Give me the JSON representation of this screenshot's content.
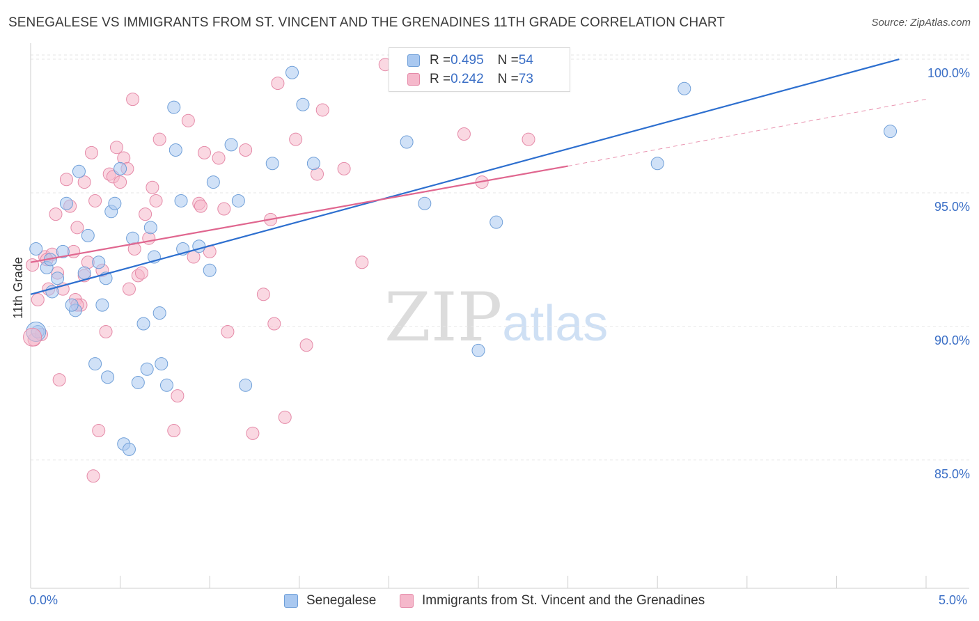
{
  "title": "SENEGALESE VS IMMIGRANTS FROM ST. VINCENT AND THE GRENADINES 11TH GRADE CORRELATION CHART",
  "source": "Source: ZipAtlas.com",
  "watermark": {
    "zip": "ZIP",
    "atlas": "atlas"
  },
  "legend": {
    "rows": [
      {
        "r_label": "R = ",
        "r_value": "0.495",
        "n_label": "N = ",
        "n_value": "54",
        "color": "#a9c8f0"
      },
      {
        "r_label": "R = ",
        "r_value": "0.242",
        "n_label": "N = ",
        "n_value": "73",
        "color": "#f5b8cb"
      }
    ]
  },
  "colors": {
    "blue_fill": "#a9c8f0",
    "blue_stroke": "#6f9fd8",
    "blue_line": "#2d6fcf",
    "pink_fill": "#f5b8cb",
    "pink_stroke": "#e58aa8",
    "pink_line": "#e0668f",
    "axis_text": "#3b6fc6"
  },
  "chart_data": {
    "type": "scatter",
    "title": "SENEGALESE VS IMMIGRANTS FROM ST. VINCENT AND THE GRENADINES 11TH GRADE CORRELATION CHART",
    "xlabel": "",
    "ylabel": "11th Grade",
    "xlim": [
      0,
      5
    ],
    "ylim": [
      80.2,
      100.6
    ],
    "x_tick_labels": [
      "0.0%",
      "5.0%"
    ],
    "y_ticks": [
      85,
      90,
      95,
      100
    ],
    "y_tick_labels": [
      "85.0%",
      "90.0%",
      "95.0%",
      "100.0%"
    ],
    "grid": true,
    "legend_position": "top-center",
    "series": [
      {
        "name": "Senegalese",
        "color": "#a9c8f0",
        "points": [
          [
            0.03,
            92.9
          ],
          [
            0.04,
            89.8
          ],
          [
            0.09,
            92.2
          ],
          [
            0.11,
            92.5
          ],
          [
            0.12,
            91.3
          ],
          [
            0.15,
            91.8
          ],
          [
            0.18,
            92.8
          ],
          [
            0.2,
            94.6
          ],
          [
            0.25,
            90.6
          ],
          [
            0.27,
            95.8
          ],
          [
            0.3,
            92.0
          ],
          [
            0.32,
            93.4
          ],
          [
            0.36,
            88.6
          ],
          [
            0.4,
            90.8
          ],
          [
            0.42,
            91.8
          ],
          [
            0.43,
            88.1
          ],
          [
            0.45,
            94.3
          ],
          [
            0.47,
            94.6
          ],
          [
            0.5,
            95.9
          ],
          [
            0.52,
            85.6
          ],
          [
            0.55,
            85.4
          ],
          [
            0.57,
            93.3
          ],
          [
            0.6,
            87.9
          ],
          [
            0.63,
            90.1
          ],
          [
            0.65,
            88.4
          ],
          [
            0.67,
            93.7
          ],
          [
            0.69,
            92.6
          ],
          [
            0.72,
            90.5
          ],
          [
            0.73,
            88.6
          ],
          [
            0.76,
            87.8
          ],
          [
            0.8,
            98.2
          ],
          [
            0.81,
            96.6
          ],
          [
            0.84,
            94.7
          ],
          [
            0.94,
            93.0
          ],
          [
            1.0,
            92.1
          ],
          [
            1.02,
            95.4
          ],
          [
            1.12,
            96.8
          ],
          [
            1.16,
            94.7
          ],
          [
            1.2,
            87.8
          ],
          [
            1.35,
            96.1
          ],
          [
            1.46,
            99.5
          ],
          [
            1.52,
            98.3
          ],
          [
            1.58,
            96.1
          ],
          [
            2.1,
            96.9
          ],
          [
            2.2,
            94.6
          ],
          [
            2.5,
            89.1
          ],
          [
            2.6,
            93.9
          ],
          [
            2.69,
            99.9
          ],
          [
            3.5,
            96.1
          ],
          [
            3.65,
            98.9
          ],
          [
            4.8,
            97.3
          ],
          [
            0.38,
            92.4
          ],
          [
            0.85,
            92.9
          ],
          [
            0.23,
            90.8
          ]
        ],
        "trend": {
          "x": [
            0.0,
            4.85
          ],
          "y": [
            91.2,
            100.0
          ]
        }
      },
      {
        "name": "Immigrants from St. Vincent and the Grenadines",
        "color": "#f5b8cb",
        "points": [
          [
            0.01,
            92.3
          ],
          [
            0.02,
            89.5
          ],
          [
            0.04,
            91.0
          ],
          [
            0.06,
            89.7
          ],
          [
            0.08,
            92.6
          ],
          [
            0.1,
            91.4
          ],
          [
            0.12,
            92.7
          ],
          [
            0.14,
            94.2
          ],
          [
            0.15,
            92.0
          ],
          [
            0.16,
            88.0
          ],
          [
            0.18,
            91.4
          ],
          [
            0.2,
            95.5
          ],
          [
            0.22,
            94.5
          ],
          [
            0.24,
            92.8
          ],
          [
            0.25,
            91.0
          ],
          [
            0.26,
            93.7
          ],
          [
            0.28,
            90.8
          ],
          [
            0.3,
            95.4
          ],
          [
            0.3,
            91.9
          ],
          [
            0.32,
            92.4
          ],
          [
            0.34,
            96.5
          ],
          [
            0.35,
            84.4
          ],
          [
            0.36,
            94.7
          ],
          [
            0.38,
            86.1
          ],
          [
            0.4,
            92.1
          ],
          [
            0.42,
            89.8
          ],
          [
            0.44,
            95.7
          ],
          [
            0.46,
            95.6
          ],
          [
            0.48,
            96.7
          ],
          [
            0.5,
            95.4
          ],
          [
            0.52,
            96.3
          ],
          [
            0.54,
            95.9
          ],
          [
            0.55,
            91.4
          ],
          [
            0.57,
            98.5
          ],
          [
            0.58,
            92.9
          ],
          [
            0.6,
            91.9
          ],
          [
            0.62,
            92.0
          ],
          [
            0.64,
            94.2
          ],
          [
            0.66,
            93.3
          ],
          [
            0.68,
            95.2
          ],
          [
            0.7,
            94.7
          ],
          [
            0.72,
            97.0
          ],
          [
            0.8,
            86.1
          ],
          [
            0.82,
            87.4
          ],
          [
            0.88,
            97.7
          ],
          [
            0.91,
            92.6
          ],
          [
            0.94,
            94.6
          ],
          [
            0.95,
            94.5
          ],
          [
            0.97,
            96.5
          ],
          [
            1.0,
            92.8
          ],
          [
            1.05,
            96.3
          ],
          [
            1.08,
            94.4
          ],
          [
            1.1,
            89.8
          ],
          [
            1.2,
            96.6
          ],
          [
            1.24,
            86.0
          ],
          [
            1.3,
            91.2
          ],
          [
            1.34,
            94.0
          ],
          [
            1.36,
            90.1
          ],
          [
            1.38,
            99.1
          ],
          [
            1.42,
            86.6
          ],
          [
            1.48,
            97.0
          ],
          [
            1.54,
            89.3
          ],
          [
            1.6,
            95.7
          ],
          [
            1.63,
            98.1
          ],
          [
            1.75,
            95.9
          ],
          [
            1.85,
            92.4
          ],
          [
            1.98,
            99.8
          ],
          [
            2.17,
            99.3
          ],
          [
            2.42,
            97.2
          ],
          [
            2.52,
            95.4
          ],
          [
            2.78,
            97.0
          ],
          [
            0.09,
            92.5
          ],
          [
            0.26,
            90.8
          ]
        ],
        "trend": {
          "x": [
            0.0,
            3.0
          ],
          "y": [
            92.4,
            96.0
          ]
        },
        "trend_extension": {
          "x": [
            3.0,
            5.0
          ],
          "y": [
            96.0,
            98.5
          ]
        }
      }
    ]
  },
  "bottom_legend": [
    {
      "label": "Senegalese",
      "color": "#a9c8f0"
    },
    {
      "label": "Immigrants from St. Vincent and the Grenadines",
      "color": "#f5b8cb"
    }
  ]
}
